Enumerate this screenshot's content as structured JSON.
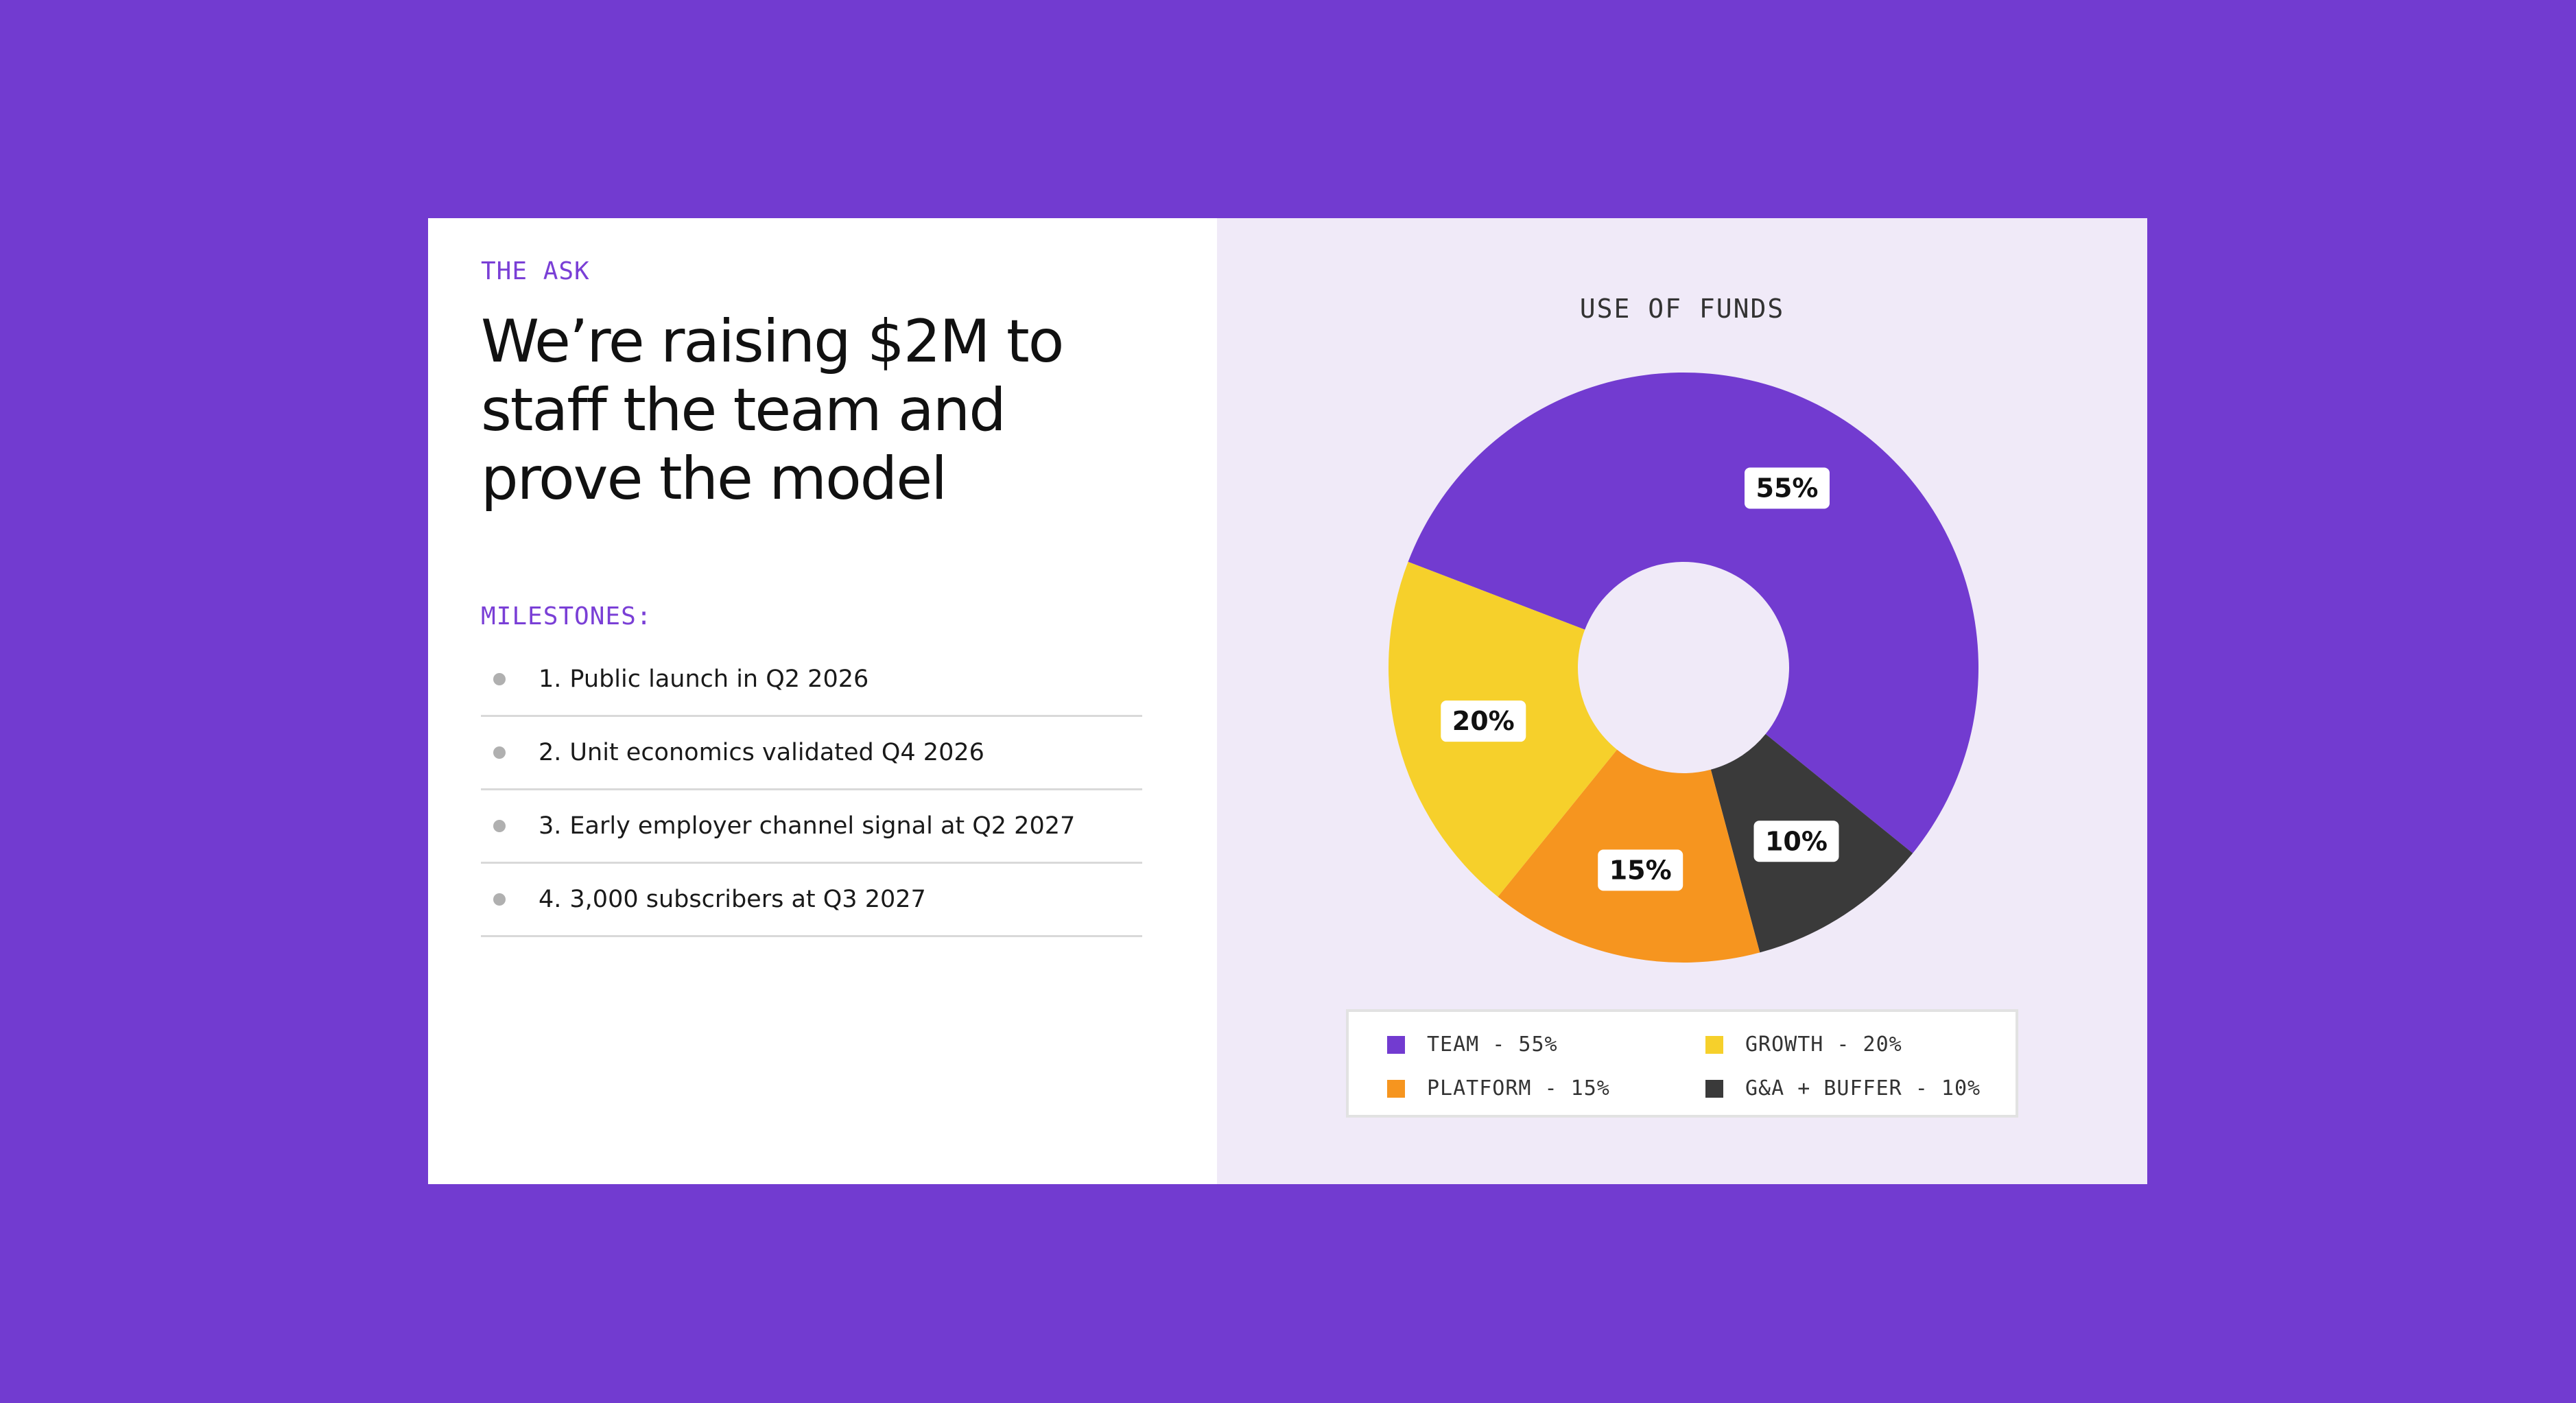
{
  "left": {
    "eyebrow": "THE ASK",
    "headline": "We’re raising $2M to staff the team and prove the model",
    "milestones_title": "MILESTONES:",
    "milestones": [
      {
        "num": "1.",
        "text": "Public launch in Q2 2026"
      },
      {
        "num": "2.",
        "text": "Unit economics validated Q4 2026"
      },
      {
        "num": "3.",
        "text": "Early employer channel signal at Q2 2027"
      },
      {
        "num": "4.",
        "text": "3,000 subscribers at Q3 2027"
      }
    ]
  },
  "chart_data": {
    "type": "pie",
    "variant": "donut",
    "title": "USE OF FUNDS",
    "slices": [
      {
        "name": "TEAM",
        "value": 55,
        "label": "55%",
        "legend": "TEAM - 55%",
        "color": "#723bd0"
      },
      {
        "name": "G&A + BUFFER",
        "value": 10,
        "label": "10%",
        "legend": "G&A + BUFFER - 10%",
        "color": "#3a3a3a"
      },
      {
        "name": "PLATFORM",
        "value": 15,
        "label": "15%",
        "legend": "PLATFORM - 15%",
        "color": "#f6951f"
      },
      {
        "name": "GROWTH",
        "value": 20,
        "label": "20%",
        "legend": "GROWTH - 20%",
        "color": "#f6d02b"
      }
    ],
    "legend_order": [
      "TEAM",
      "GROWTH",
      "PLATFORM",
      "G&A + BUFFER"
    ],
    "legend_position": "bottom"
  },
  "colors": {
    "background": "#723bd0",
    "accent": "#7a3fd6",
    "panel_right": "#f0eaf8"
  }
}
